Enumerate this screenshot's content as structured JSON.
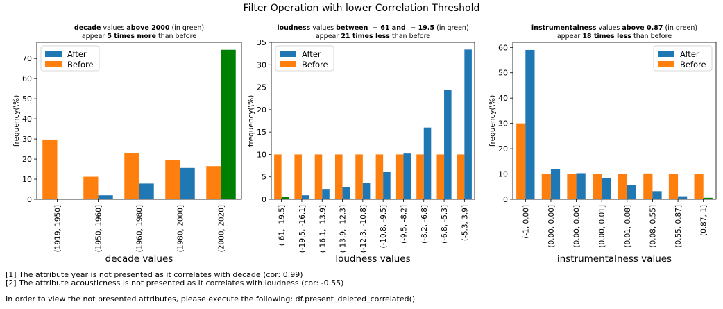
{
  "figure_title": "Filter Operation with lower Correlation Threshold",
  "colors": {
    "after": "#1f77b4",
    "before": "#ff7f0e",
    "highlight": "#008000"
  },
  "chart_data": [
    {
      "type": "bar",
      "title_parts": [
        {
          "text": "decade",
          "bold": true
        },
        {
          "text": " values ",
          "bold": false
        },
        {
          "text": "above 2000",
          "bold": true
        },
        {
          "text": " (in green)",
          "bold": false
        }
      ],
      "title_line2": [
        {
          "text": "appear ",
          "bold": false
        },
        {
          "text": "5 times more",
          "bold": true
        },
        {
          "text": " than before",
          "bold": false
        }
      ],
      "categories": [
        "(1919, 1950]",
        "(1950, 1960]",
        "(1960, 1980]",
        "(1980, 2000]",
        "(2000, 2020]"
      ],
      "series": [
        {
          "name": "After",
          "values": [
            0.3,
            2.0,
            7.8,
            15.6,
            74.3
          ]
        },
        {
          "name": "Before",
          "values": [
            29.7,
            11.2,
            23.1,
            19.6,
            16.5
          ]
        }
      ],
      "highlight_index": [
        4
      ],
      "xlabel": "decade values",
      "ylabel": "frequency(\\%)",
      "ylim": [
        0,
        78
      ],
      "yticks": [
        0,
        10,
        20,
        30,
        40,
        50,
        60,
        70
      ],
      "legend": "top-left"
    },
    {
      "type": "bar",
      "title_parts": [
        {
          "text": "loudness",
          "bold": true
        },
        {
          "text": " values ",
          "bold": false
        },
        {
          "text": "between  − 61 and  − 19.5",
          "bold": true
        },
        {
          "text": " (in green)",
          "bold": false
        }
      ],
      "title_line2": [
        {
          "text": "appear ",
          "bold": false
        },
        {
          "text": "21 times less",
          "bold": true
        },
        {
          "text": " than before",
          "bold": false
        }
      ],
      "categories": [
        "(-61, -19.5]",
        "(-19.5, -16.1]",
        "(-16.1, -13.9]",
        "(-13.9, -12.3]",
        "(-12.3, -10.8]",
        "(-10.8, -9.5]",
        "(-9.5, -8.2]",
        "(-8.2, -6.8]",
        "(-6.8, -5.3]",
        "(-5.3, 3.9]"
      ],
      "series": [
        {
          "name": "After",
          "values": [
            0.5,
            0.9,
            2.3,
            2.7,
            3.6,
            6.2,
            10.2,
            16.0,
            24.4,
            33.4
          ]
        },
        {
          "name": "Before",
          "values": [
            10,
            10,
            10,
            10,
            10,
            10,
            10,
            10,
            10,
            10
          ]
        }
      ],
      "highlight_index": [
        0
      ],
      "xlabel": "loudness values",
      "ylabel": "frequency(\\%)",
      "ylim": [
        0,
        35
      ],
      "yticks": [
        0,
        5,
        10,
        15,
        20,
        25,
        30,
        35
      ],
      "legend": "top-left"
    },
    {
      "type": "bar",
      "title_parts": [
        {
          "text": "instrumentalness",
          "bold": true
        },
        {
          "text": " values ",
          "bold": false
        },
        {
          "text": "above 0.87",
          "bold": true
        },
        {
          "text": " (in green)",
          "bold": false
        }
      ],
      "title_line2": [
        {
          "text": "appear ",
          "bold": false
        },
        {
          "text": "18 times less",
          "bold": true
        },
        {
          "text": " than before",
          "bold": false
        }
      ],
      "categories": [
        "(-1, 0.00]",
        "(0.00, 0.00]",
        "(0.00, 0.00]",
        "(0.00, 0.01]",
        "(0.01, 0.08]",
        "(0.08, 0.55]",
        "(0.55, 0.87]",
        "(0.87, 1]"
      ],
      "series": [
        {
          "name": "After",
          "values": [
            59.0,
            12.0,
            10.3,
            8.5,
            5.5,
            3.2,
            1.2,
            0.6
          ]
        },
        {
          "name": "Before",
          "values": [
            30.0,
            10.0,
            10.0,
            10.0,
            10.0,
            10.2,
            10.1,
            10.0
          ]
        }
      ],
      "highlight_index": [
        7
      ],
      "xlabel": "instrumentalness values",
      "ylabel": "frequency(\\%)",
      "ylim": [
        0,
        62
      ],
      "yticks": [
        0,
        10,
        20,
        30,
        40,
        50,
        60
      ],
      "legend": "top-right"
    }
  ],
  "notes": [
    "[1] The attribute year is not presented as it correlates with decade (cor: 0.99)",
    "[2] The attribute acousticness is not presented as it correlates with loudness (cor: -0.55)"
  ],
  "instruction": "In order to view the not presented attributes, please execute the following: df.present_deleted_correlated()"
}
